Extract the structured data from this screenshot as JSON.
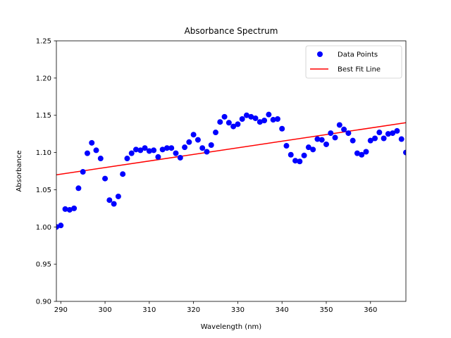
{
  "chart_data": {
    "type": "scatter",
    "title": "Absorbance Spectrum",
    "xlabel": "Wavelength (nm)",
    "ylabel": "Absorbance",
    "xlim": [
      289,
      368
    ],
    "ylim": [
      0.9,
      1.25
    ],
    "xticks": [
      290,
      300,
      310,
      320,
      330,
      340,
      350,
      360
    ],
    "yticks": [
      0.9,
      0.95,
      1.0,
      1.05,
      1.1,
      1.15,
      1.2,
      1.25
    ],
    "grid": false,
    "legend_position": "top-right",
    "series": [
      {
        "name": "Data Points",
        "kind": "scatter",
        "color": "#0000ff",
        "points": [
          [
            289,
            1.0
          ],
          [
            290,
            1.002
          ],
          [
            291,
            1.024
          ],
          [
            292,
            1.023
          ],
          [
            293,
            1.025
          ],
          [
            294,
            1.052
          ],
          [
            295,
            1.074
          ],
          [
            296,
            1.099
          ],
          [
            297,
            1.113
          ],
          [
            298,
            1.103
          ],
          [
            299,
            1.092
          ],
          [
            300,
            1.065
          ],
          [
            301,
            1.036
          ],
          [
            302,
            1.031
          ],
          [
            303,
            1.041
          ],
          [
            304,
            1.071
          ],
          [
            305,
            1.092
          ],
          [
            306,
            1.099
          ],
          [
            307,
            1.104
          ],
          [
            308,
            1.103
          ],
          [
            309,
            1.106
          ],
          [
            310,
            1.102
          ],
          [
            311,
            1.103
          ],
          [
            312,
            1.094
          ],
          [
            313,
            1.104
          ],
          [
            314,
            1.106
          ],
          [
            315,
            1.106
          ],
          [
            316,
            1.099
          ],
          [
            317,
            1.093
          ],
          [
            318,
            1.107
          ],
          [
            319,
            1.114
          ],
          [
            320,
            1.124
          ],
          [
            321,
            1.117
          ],
          [
            322,
            1.106
          ],
          [
            323,
            1.101
          ],
          [
            324,
            1.11
          ],
          [
            325,
            1.127
          ],
          [
            326,
            1.141
          ],
          [
            327,
            1.148
          ],
          [
            328,
            1.14
          ],
          [
            329,
            1.135
          ],
          [
            330,
            1.138
          ],
          [
            331,
            1.145
          ],
          [
            332,
            1.15
          ],
          [
            333,
            1.148
          ],
          [
            334,
            1.146
          ],
          [
            335,
            1.141
          ],
          [
            336,
            1.143
          ],
          [
            337,
            1.151
          ],
          [
            338,
            1.144
          ],
          [
            339,
            1.145
          ],
          [
            340,
            1.132
          ],
          [
            341,
            1.109
          ],
          [
            342,
            1.097
          ],
          [
            343,
            1.089
          ],
          [
            344,
            1.088
          ],
          [
            345,
            1.096
          ],
          [
            346,
            1.107
          ],
          [
            347,
            1.104
          ],
          [
            348,
            1.118
          ],
          [
            349,
            1.117
          ],
          [
            350,
            1.111
          ],
          [
            351,
            1.126
          ],
          [
            352,
            1.12
          ],
          [
            353,
            1.137
          ],
          [
            354,
            1.131
          ],
          [
            355,
            1.126
          ],
          [
            356,
            1.116
          ],
          [
            357,
            1.099
          ],
          [
            358,
            1.097
          ],
          [
            359,
            1.101
          ],
          [
            360,
            1.116
          ],
          [
            361,
            1.119
          ],
          [
            362,
            1.127
          ],
          [
            363,
            1.119
          ],
          [
            364,
            1.125
          ],
          [
            365,
            1.126
          ],
          [
            366,
            1.129
          ],
          [
            367,
            1.118
          ],
          [
            368,
            1.1
          ]
        ]
      },
      {
        "name": "Best Fit Line",
        "kind": "line",
        "color": "#ff0000",
        "points": [
          [
            289,
            1.07
          ],
          [
            368,
            1.14
          ]
        ]
      }
    ]
  }
}
